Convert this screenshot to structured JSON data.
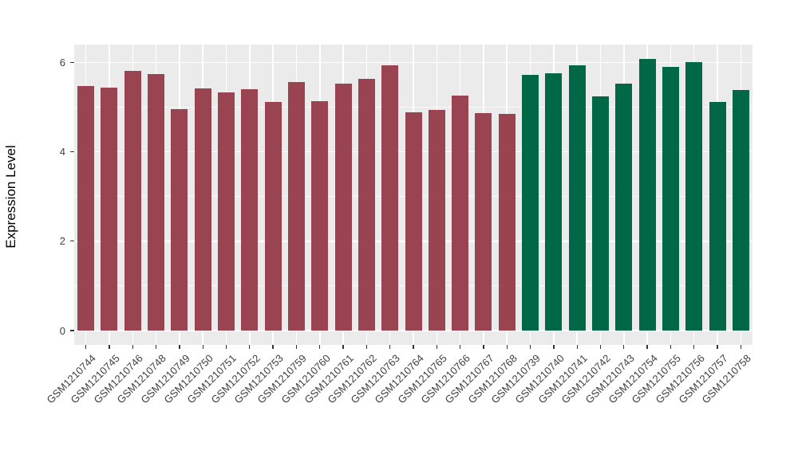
{
  "chart_data": {
    "type": "bar",
    "title": "",
    "xlabel": "",
    "ylabel": "Expression Level",
    "yticks": [
      0,
      2,
      4,
      6
    ],
    "yminor": [
      1,
      3,
      5
    ],
    "ylim": [
      0,
      6.4
    ],
    "grid": "on",
    "legend": "none",
    "panel_background_color": "#EBEBEB",
    "gridline_color": "#ffffff",
    "categories": [
      "GSM1210744",
      "GSM1210745",
      "GSM1210746",
      "GSM1210748",
      "GSM1210749",
      "GSM1210750",
      "GSM1210751",
      "GSM1210752",
      "GSM1210753",
      "GSM1210759",
      "GSM1210760",
      "GSM1210761",
      "GSM1210762",
      "GSM1210763",
      "GSM1210764",
      "GSM1210765",
      "GSM1210766",
      "GSM1210767",
      "GSM1210768",
      "GSM1210739",
      "GSM1210740",
      "GSM1210741",
      "GSM1210742",
      "GSM1210743",
      "GSM1210754",
      "GSM1210755",
      "GSM1210756",
      "GSM1210757",
      "GSM1210758"
    ],
    "values": [
      5.48,
      5.44,
      5.81,
      5.74,
      4.95,
      5.42,
      5.33,
      5.41,
      5.11,
      5.56,
      5.14,
      5.53,
      5.63,
      5.94,
      4.88,
      4.93,
      5.26,
      4.87,
      4.84,
      5.72,
      5.76,
      5.94,
      5.24,
      5.52,
      6.08,
      5.9,
      6.01,
      5.11,
      5.39
    ],
    "groups": [
      "group1",
      "group1",
      "group1",
      "group1",
      "group1",
      "group1",
      "group1",
      "group1",
      "group1",
      "group1",
      "group1",
      "group1",
      "group1",
      "group1",
      "group1",
      "group1",
      "group1",
      "group1",
      "group1",
      "group2",
      "group2",
      "group2",
      "group2",
      "group2",
      "group2",
      "group2",
      "group2",
      "group2",
      "group2"
    ],
    "group_colors": {
      "group1": "#9A4452",
      "group2": "#006747"
    }
  }
}
